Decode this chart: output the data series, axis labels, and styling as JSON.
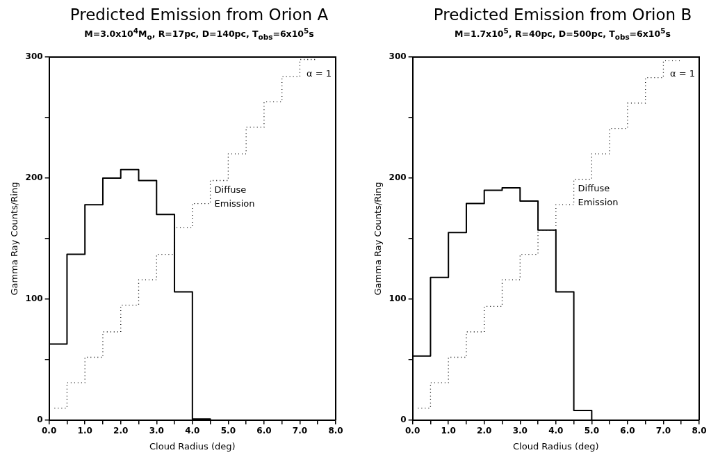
{
  "chart_data": [
    {
      "type": "step",
      "title": "Predicted Emission from Orion A",
      "subtitle": "M=3.0x10$^{4}$M$_{o}$, R=17pc, D=140pc, T$_{obs}$=6x10$^{5}$s",
      "xlabel": "Cloud Radius (deg)",
      "ylabel": "Gamma Ray Counts/Ring",
      "series": [
        {
          "color": "#000000",
          "line_style": "solid",
          "x": [
            0,
            0.5,
            1.0,
            1.5,
            2.0,
            2.5,
            3.0,
            3.5,
            4.0,
            4.5
          ],
          "values": [
            63,
            137,
            178,
            200,
            207,
            198,
            170,
            106,
            1,
            0
          ]
        },
        {
          "name": "Diffuse Emission",
          "color": "#000000",
          "line_style": "dotted",
          "x": [
            0.15,
            0.5,
            1.0,
            1.5,
            2.0,
            2.5,
            3.0,
            3.5,
            4.0,
            4.5,
            5.0,
            5.5,
            6.0,
            6.5,
            7.0,
            7.5
          ],
          "values": [
            10,
            31,
            52,
            73,
            95,
            116,
            137,
            159,
            179,
            198,
            220,
            242,
            263,
            284,
            298,
            298
          ]
        }
      ],
      "xlim": [
        0,
        8
      ],
      "ylim": [
        0,
        300
      ],
      "xticks": [
        {
          "value": 0,
          "label": "0.0"
        },
        {
          "value": 0.5,
          "label": null
        },
        {
          "value": 1,
          "label": "1.0"
        },
        {
          "value": 1.5,
          "label": null
        },
        {
          "value": 2,
          "label": "2.0"
        },
        {
          "value": 2.5,
          "label": null
        },
        {
          "value": 3,
          "label": "3.0"
        },
        {
          "value": 3.5,
          "label": null
        },
        {
          "value": 4,
          "label": "4.0"
        },
        {
          "value": 4.5,
          "label": null
        },
        {
          "value": 5,
          "label": "5.0"
        },
        {
          "value": 5.5,
          "label": null
        },
        {
          "value": 6,
          "label": "6.0"
        },
        {
          "value": 6.5,
          "label": null
        },
        {
          "value": 7,
          "label": "7.0"
        },
        {
          "value": 7.5,
          "label": null
        },
        {
          "value": 8,
          "label": "8.0"
        }
      ],
      "yticks": [
        0,
        {
          "value": 50,
          "label": null
        },
        100,
        {
          "value": 150,
          "label": null
        },
        200,
        {
          "value": 250,
          "label": null
        },
        300
      ],
      "annotations": [
        "α = 1"
      ],
      "grid": false,
      "legend": false
    },
    {
      "type": "step",
      "title": "Predicted Emission from Orion B",
      "subtitle": "M=1.7x10$^{5}$, R=40pc, D=500pc, T$_{obs}$=6x10$^{5}$s",
      "xlabel": "Cloud Radius (deg)",
      "ylabel": "Gamma Ray Counts/Ring",
      "series": [
        {
          "color": "#000000",
          "line_style": "solid",
          "x": [
            0,
            0.5,
            1.0,
            1.5,
            2.0,
            2.5,
            3.0,
            3.5,
            4.0,
            4.5,
            5.0
          ],
          "values": [
            53,
            118,
            155,
            179,
            190,
            192,
            181,
            157,
            106,
            8,
            0
          ]
        },
        {
          "name": "Diffuse Emission",
          "color": "#000000",
          "line_style": "dotted",
          "x": [
            0.15,
            0.5,
            1.0,
            1.5,
            2.0,
            2.5,
            3.0,
            3.5,
            4.0,
            4.5,
            5.0,
            5.5,
            6.0,
            6.5,
            7.0,
            7.5
          ],
          "values": [
            10,
            31,
            52,
            73,
            94,
            116,
            137,
            157,
            178,
            199,
            220,
            241,
            262,
            283,
            297,
            297
          ]
        }
      ],
      "xlim": [
        0,
        8
      ],
      "ylim": [
        0,
        300
      ],
      "xticks": [
        {
          "value": 0,
          "label": "0.0"
        },
        {
          "value": 0.5,
          "label": null
        },
        {
          "value": 1,
          "label": "1.0"
        },
        {
          "value": 1.5,
          "label": null
        },
        {
          "value": 2,
          "label": "2.0"
        },
        {
          "value": 2.5,
          "label": null
        },
        {
          "value": 3,
          "label": "3.0"
        },
        {
          "value": 3.5,
          "label": null
        },
        {
          "value": 4,
          "label": "4.0"
        },
        {
          "value": 4.5,
          "label": null
        },
        {
          "value": 5,
          "label": "5.0"
        },
        {
          "value": 5.5,
          "label": null
        },
        {
          "value": 6,
          "label": "6.0"
        },
        {
          "value": 6.5,
          "label": null
        },
        {
          "value": 7,
          "label": "7.0"
        },
        {
          "value": 7.5,
          "label": null
        },
        {
          "value": 8,
          "label": "8.0"
        }
      ],
      "yticks": [
        0,
        {
          "value": 50,
          "label": null
        },
        100,
        {
          "value": 150,
          "label": null
        },
        200,
        {
          "value": 250,
          "label": null
        },
        300
      ],
      "annotations": [
        "α = 1"
      ],
      "grid": false,
      "legend": false
    }
  ]
}
